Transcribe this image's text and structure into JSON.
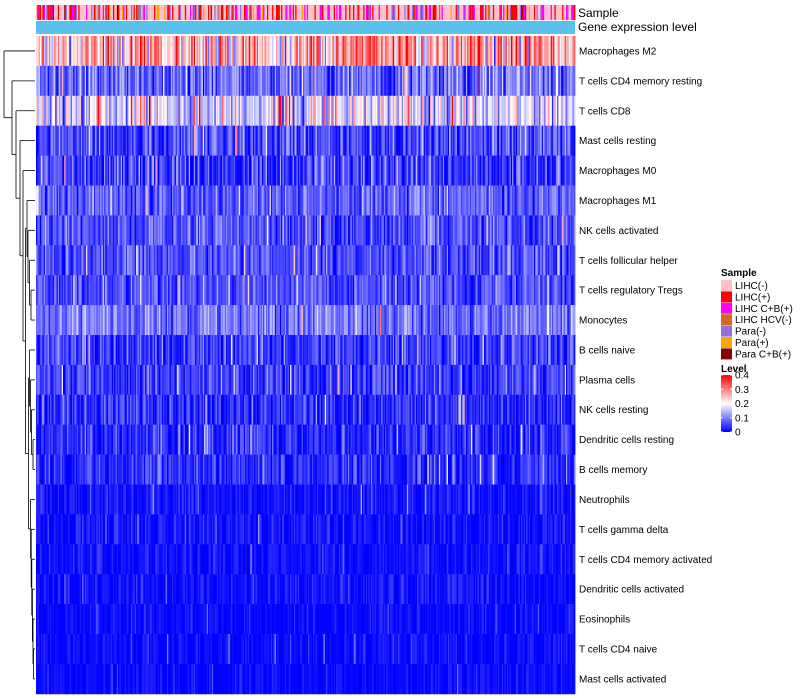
{
  "chart_data": {
    "type": "heatmap",
    "annotation_tracks": [
      {
        "name": "Sample"
      },
      {
        "name": "Gene expression level"
      }
    ],
    "rows": [
      {
        "name": "Macrophages M2",
        "mean": 0.26,
        "sd": 0.08
      },
      {
        "name": "T cells CD4 memory resting",
        "mean": 0.08,
        "sd": 0.055
      },
      {
        "name": "T cells CD8",
        "mean": 0.17,
        "sd": 0.07
      },
      {
        "name": "Mast cells resting",
        "mean": 0.05,
        "sd": 0.045
      },
      {
        "name": "Macrophages M0",
        "mean": 0.045,
        "sd": 0.05
      },
      {
        "name": "Macrophages M1",
        "mean": 0.07,
        "sd": 0.035
      },
      {
        "name": "NK cells activated",
        "mean": 0.06,
        "sd": 0.04
      },
      {
        "name": "T cells follicular helper",
        "mean": 0.06,
        "sd": 0.035
      },
      {
        "name": "T cells regulatory  Tregs",
        "mean": 0.06,
        "sd": 0.035
      },
      {
        "name": "Monocytes",
        "mean": 0.09,
        "sd": 0.04
      },
      {
        "name": "B cells naive",
        "mean": 0.045,
        "sd": 0.04
      },
      {
        "name": "Plasma cells",
        "mean": 0.045,
        "sd": 0.04
      },
      {
        "name": "NK cells resting",
        "mean": 0.035,
        "sd": 0.04
      },
      {
        "name": "Dendritic cells resting",
        "mean": 0.03,
        "sd": 0.035
      },
      {
        "name": "B cells memory",
        "mean": 0.035,
        "sd": 0.035
      },
      {
        "name": "Neutrophils",
        "mean": 0.015,
        "sd": 0.02
      },
      {
        "name": "T cells gamma delta",
        "mean": 0.012,
        "sd": 0.025
      },
      {
        "name": "T cells CD4 memory activated",
        "mean": 0.01,
        "sd": 0.02
      },
      {
        "name": "Dendritic cells activated",
        "mean": 0.01,
        "sd": 0.02
      },
      {
        "name": "Eosinophils",
        "mean": 0.008,
        "sd": 0.015
      },
      {
        "name": "T cells CD4 naive",
        "mean": 0.008,
        "sd": 0.018
      },
      {
        "name": "Mast cells activated",
        "mean": 0.007,
        "sd": 0.016
      }
    ],
    "legend_sample": {
      "title": "Sample",
      "entries": [
        {
          "label": "LIHC(-)",
          "color": "#FFC0CB"
        },
        {
          "label": "LIHC(+)",
          "color": "#FF0000"
        },
        {
          "label": "LIHC C+B(+)",
          "color": "#FF00FF"
        },
        {
          "label": "LIHC HCV(-)",
          "color": "#D2691E"
        },
        {
          "label": "Para(-)",
          "color": "#9370DB"
        },
        {
          "label": "Para(+)",
          "color": "#FFA500"
        },
        {
          "label": "Para C+B(+)",
          "color": "#8B0000"
        }
      ]
    },
    "legend_level": {
      "title": "Level",
      "ticks": [
        "0.4",
        "0.3",
        "0.2",
        "0.1",
        "0"
      ],
      "range": [
        0,
        0.4
      ],
      "colors": [
        "#0000FF",
        "#FFFFFF",
        "#FF0000"
      ]
    },
    "gene_level_color": "#5BC0EB",
    "n_samples": 420
  }
}
